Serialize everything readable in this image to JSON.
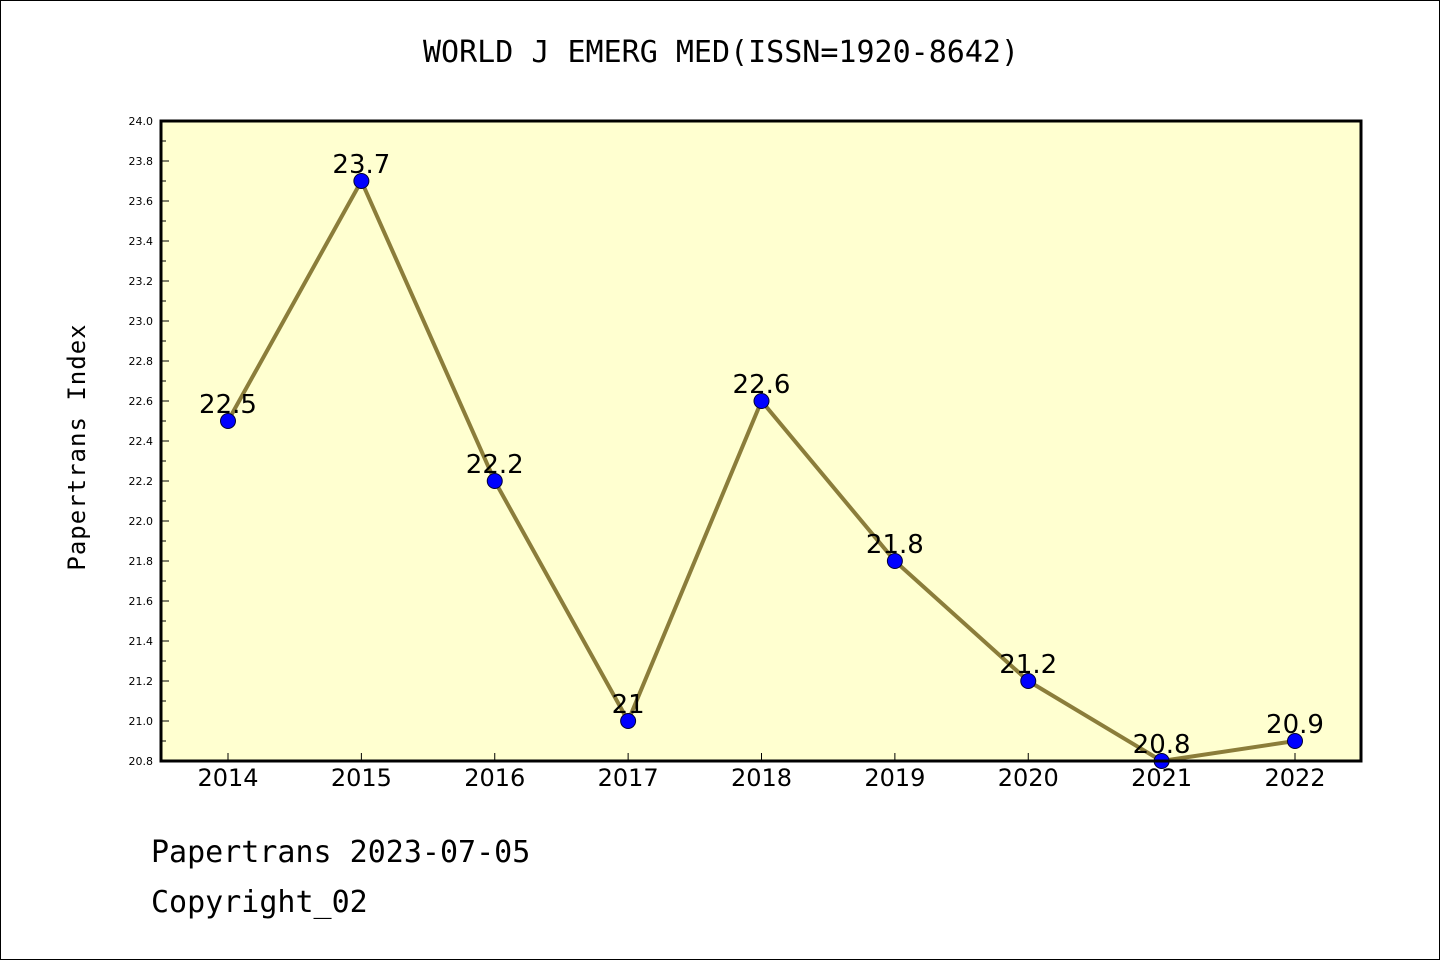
{
  "page": {
    "title": "WORLD J EMERG MED(ISSN=1920-8642)",
    "footer_line1": "Papertrans 2023-07-05",
    "footer_line2": "Copyright_02"
  },
  "chart_data": {
    "type": "line",
    "title": "WORLD J EMERG MED(ISSN=1920-8642)",
    "xlabel": "",
    "ylabel": "Papertrans Index",
    "categories": [
      "2014",
      "2015",
      "2016",
      "2017",
      "2018",
      "2019",
      "2020",
      "2021",
      "2022"
    ],
    "series": [
      {
        "values": [
          22.5,
          23.7,
          22.2,
          21,
          22.6,
          21.8,
          21.2,
          20.8,
          20.9
        ],
        "labels": [
          "22.5",
          "23.7",
          "22.2",
          "21",
          "22.6",
          "21.8",
          "21.2",
          "20.8",
          "20.9"
        ],
        "line_color": "#8b7d3a",
        "marker_color": "#0000ff"
      }
    ],
    "ylim": [
      20.8,
      24.0
    ],
    "ytick_labels": [
      "20.8",
      "21.0",
      "21.2",
      "21.4",
      "21.6",
      "21.8",
      "22.0",
      "22.2",
      "22.4",
      "22.6",
      "22.8",
      "23.0",
      "23.2",
      "23.4",
      "23.6",
      "23.8",
      "24.0"
    ],
    "plot_background": "#ffffd0",
    "grid": false,
    "legend": "none"
  }
}
